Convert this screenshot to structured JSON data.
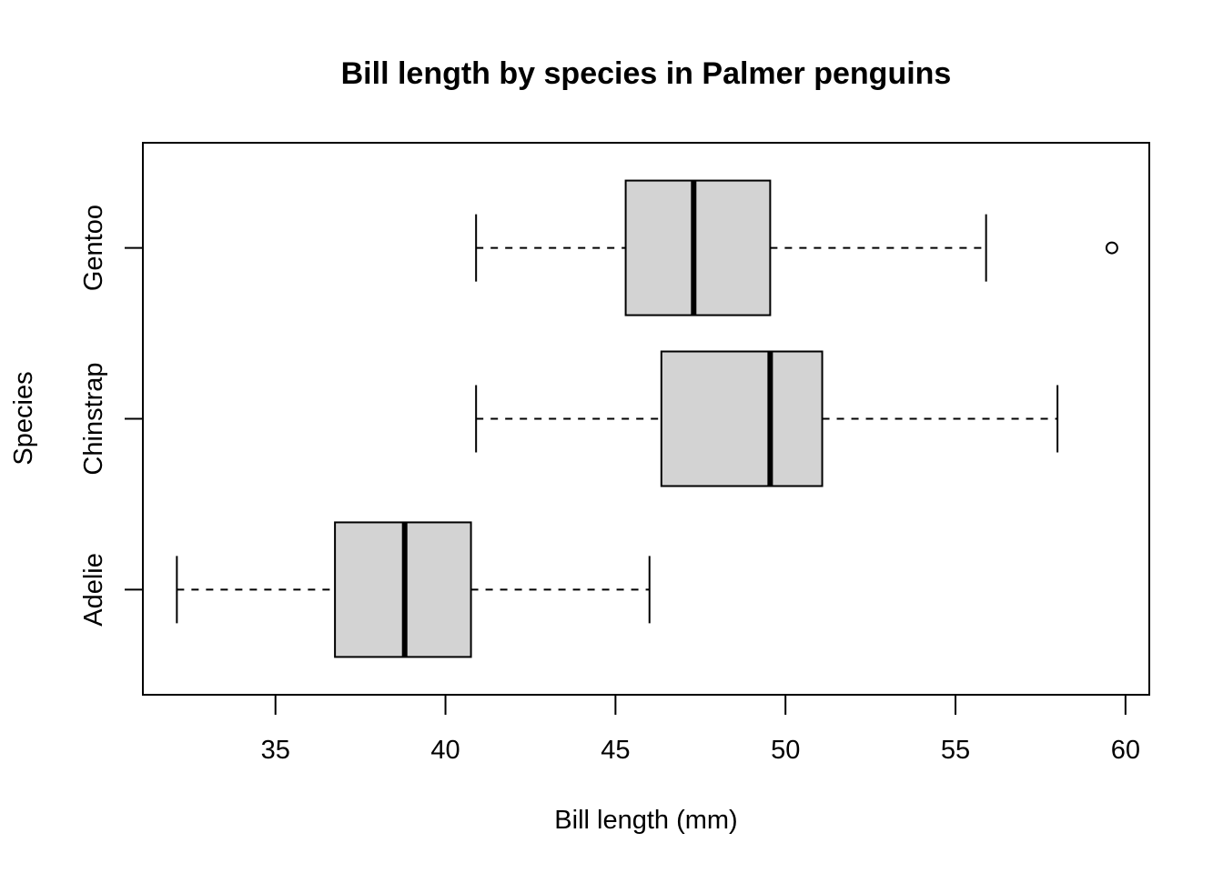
{
  "chart_data": {
    "type": "boxplot",
    "orientation": "horizontal",
    "title": "Bill length by species in Palmer penguins",
    "xlabel": "Bill length (mm)",
    "ylabel": "Species",
    "xlim": [
      31.1,
      60.7
    ],
    "xticks": [
      35,
      40,
      45,
      50,
      55,
      60
    ],
    "box_fill": "#d3d3d3",
    "grid": false,
    "legend": "none",
    "categories": [
      "Adelie",
      "Chinstrap",
      "Gentoo"
    ],
    "boxes": [
      {
        "category": "Adelie",
        "whisker_low": 32.1,
        "q1": 36.75,
        "median": 38.8,
        "q3": 40.75,
        "whisker_high": 46.0,
        "outliers": []
      },
      {
        "category": "Chinstrap",
        "whisker_low": 40.9,
        "q1": 46.35,
        "median": 49.55,
        "q3": 51.08,
        "whisker_high": 58.0,
        "outliers": []
      },
      {
        "category": "Gentoo",
        "whisker_low": 40.9,
        "q1": 45.3,
        "median": 47.3,
        "q3": 49.55,
        "whisker_high": 55.9,
        "outliers": [
          59.6
        ]
      }
    ]
  }
}
